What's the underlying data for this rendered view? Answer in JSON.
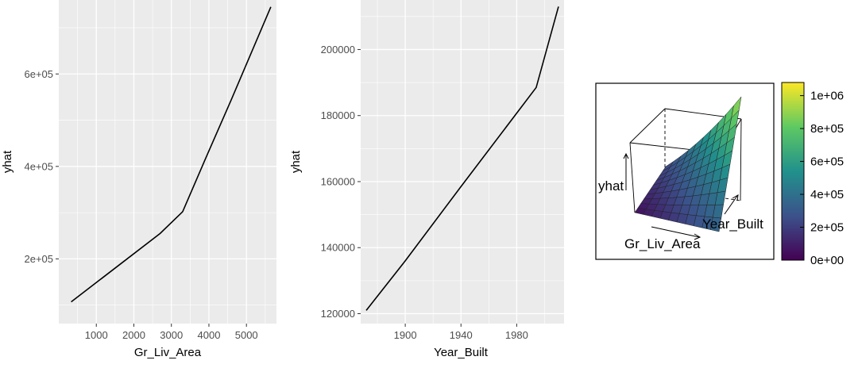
{
  "colors": {
    "panel_bg": "#ebebeb",
    "grid_major": "#ffffff",
    "line": "#000000",
    "tick_text": "#4d4d4d",
    "viridis": [
      "#440154",
      "#3b528b",
      "#21918c",
      "#5ec962",
      "#fde725"
    ]
  },
  "chart_data": [
    {
      "type": "line",
      "xlabel": "Gr_Liv_Area",
      "ylabel": "yhat",
      "xlim": [
        0,
        5800
      ],
      "ylim": [
        60000,
        760000
      ],
      "x_ticks": [
        1000,
        2000,
        3000,
        4000,
        5000
      ],
      "x_tick_labels": [
        "1000",
        "2000",
        "3000",
        "4000",
        "5000"
      ],
      "y_ticks": [
        200000,
        400000,
        600000
      ],
      "y_tick_labels": [
        "2e+05",
        "4e+05",
        "6e+05"
      ],
      "grid": true,
      "series": [
        {
          "x": [
            330,
            1500,
            2700,
            3300,
            3900,
            4600,
            5650
          ],
          "y": [
            107000,
            180000,
            255000,
            302000,
            415000,
            545000,
            745000
          ]
        }
      ]
    },
    {
      "type": "line",
      "xlabel": "Year_Built",
      "ylabel": "yhat",
      "xlim": [
        1868,
        2014
      ],
      "ylim": [
        117000,
        215000
      ],
      "x_ticks": [
        1900,
        1940,
        1980
      ],
      "x_tick_labels": [
        "1900",
        "1940",
        "1980"
      ],
      "y_ticks": [
        120000,
        140000,
        160000,
        180000,
        200000
      ],
      "y_tick_labels": [
        "120000",
        "140000",
        "160000",
        "180000",
        "200000"
      ],
      "grid": true,
      "series": [
        {
          "x": [
            1872,
            1900,
            1940,
            1994,
            2010
          ],
          "y": [
            121000,
            136000,
            158500,
            188500,
            213000
          ]
        }
      ]
    },
    {
      "type": "surface",
      "xlabel": "Gr_Liv_Area",
      "ylabel": "Year_Built",
      "zlabel": "yhat",
      "colorbar": {
        "ticks": [
          0,
          200000,
          400000,
          600000,
          800000,
          1000000
        ],
        "tick_labels": [
          "0e+00",
          "2e+05",
          "4e+05",
          "6e+05",
          "8e+05",
          "1e+06"
        ],
        "range": [
          0,
          1080000
        ]
      }
    }
  ]
}
